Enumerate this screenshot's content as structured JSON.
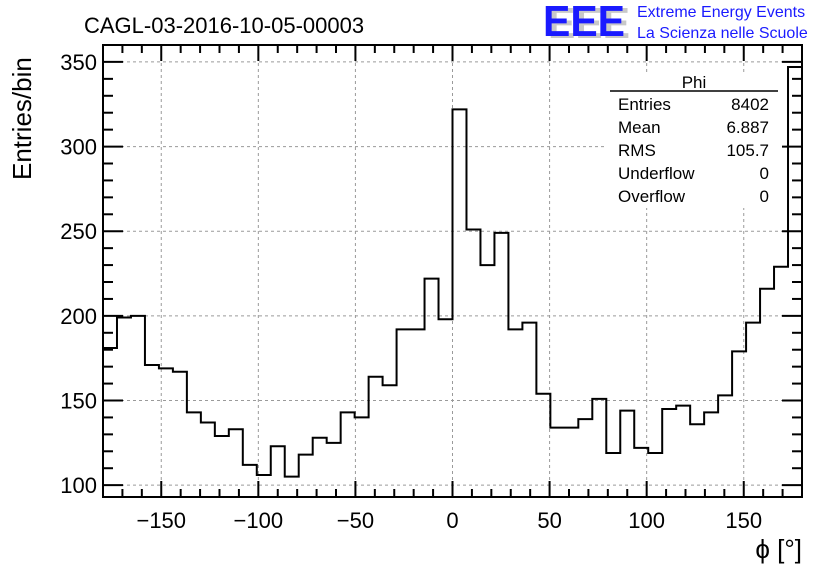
{
  "header": {
    "logo_text": "EEE",
    "org_line1": "Extreme Energy Events",
    "org_line2": "La Scienza nelle Scuole"
  },
  "colors": {
    "logo_blue": "#1a1aff",
    "logo_shadow": "#c8c8c8",
    "line": "#000000",
    "grid": "#9a9a9a"
  },
  "stats": {
    "title": "Phi",
    "rows": [
      {
        "label": "Entries",
        "value": "8402"
      },
      {
        "label": "Mean",
        "value": "6.887"
      },
      {
        "label": "RMS",
        "value": "105.7"
      },
      {
        "label": "Underflow",
        "value": "0"
      },
      {
        "label": "Overflow",
        "value": "0"
      }
    ]
  },
  "chart_data": {
    "type": "bar",
    "title": "CAGL-03-2016-10-05-00003",
    "xlabel": "ϕ [°]",
    "ylabel": "Entries/bin",
    "xlim": [
      -180,
      180
    ],
    "ylim": [
      93,
      360
    ],
    "grid": true,
    "bin_width": 7.2,
    "xticks": [
      -150,
      -100,
      -50,
      0,
      50,
      100,
      150
    ],
    "xtick_labels": [
      "−150",
      "−100",
      "−50",
      "0",
      "50",
      "100",
      "150"
    ],
    "yticks": [
      100,
      150,
      200,
      250,
      300,
      350
    ],
    "ytick_labels": [
      "100",
      "150",
      "200",
      "250",
      "300",
      "350"
    ],
    "values": [
      181,
      199,
      200,
      171,
      169,
      167,
      143,
      137,
      129,
      133,
      112,
      106,
      123,
      105,
      118,
      128,
      125,
      143,
      140,
      164,
      159,
      192,
      192,
      222,
      198,
      322,
      251,
      230,
      249,
      192,
      196,
      154,
      134,
      134,
      139,
      151,
      119,
      144,
      122,
      119,
      145,
      147,
      136,
      143,
      153,
      179,
      196,
      216,
      229,
      347
    ]
  }
}
